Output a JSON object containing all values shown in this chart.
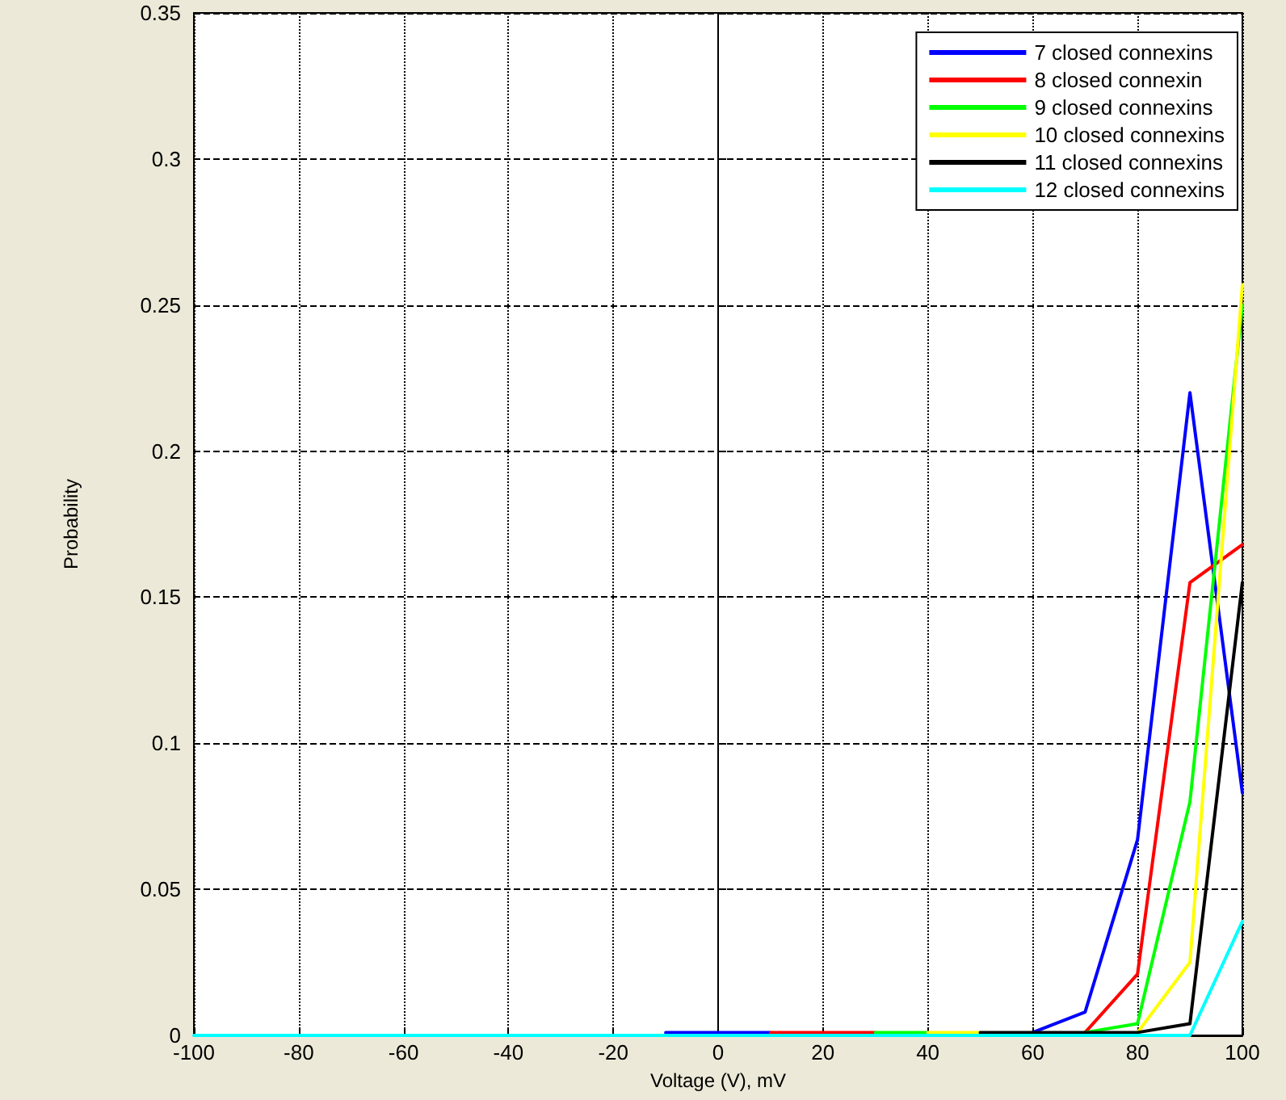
{
  "chart_data": {
    "type": "line",
    "xlabel": "Voltage (V), mV",
    "ylabel": "Probability",
    "x": [
      -100,
      -90,
      -80,
      -70,
      -60,
      -50,
      -40,
      -30,
      -20,
      -10,
      0,
      10,
      20,
      30,
      40,
      50,
      60,
      70,
      80,
      90,
      100
    ],
    "series": [
      {
        "name": "7 closed connexins",
        "color": "#0000ff",
        "values": [
          null,
          null,
          null,
          null,
          null,
          null,
          null,
          null,
          null,
          0.001,
          0.001,
          0.001,
          null,
          null,
          null,
          null,
          0.001,
          0.008,
          0.067,
          0.22,
          0.083
        ]
      },
      {
        "name": "8 closed connexin",
        "color": "#ff0000",
        "values": [
          null,
          null,
          null,
          null,
          null,
          null,
          null,
          null,
          null,
          null,
          null,
          0.001,
          0.001,
          0.001,
          null,
          null,
          null,
          0.001,
          0.021,
          0.155,
          0.168
        ]
      },
      {
        "name": "9 closed connexins",
        "color": "#00ff00",
        "values": [
          null,
          null,
          null,
          null,
          null,
          null,
          null,
          null,
          null,
          null,
          null,
          null,
          null,
          0.001,
          0.001,
          null,
          null,
          0.001,
          0.004,
          0.08,
          0.25
        ]
      },
      {
        "name": "10 closed connexins",
        "color": "#ffff00",
        "values": [
          null,
          null,
          null,
          null,
          null,
          null,
          null,
          null,
          null,
          null,
          null,
          null,
          null,
          null,
          0.001,
          0.001,
          null,
          null,
          0.001,
          0.025,
          0.257
        ]
      },
      {
        "name": "11 closed connexins",
        "color": "#000000",
        "values": [
          null,
          null,
          null,
          null,
          null,
          null,
          null,
          null,
          null,
          null,
          null,
          null,
          null,
          null,
          null,
          0.001,
          0.001,
          0.001,
          0.001,
          0.004,
          0.155
        ]
      },
      {
        "name": "12 closed connexins",
        "color": "#00ffff",
        "values": [
          0,
          0,
          0,
          0,
          0,
          0,
          0,
          0,
          0,
          0,
          0,
          0,
          0,
          0,
          0,
          0,
          0,
          0,
          0,
          0,
          0.039
        ]
      }
    ],
    "xlim": [
      -100,
      100
    ],
    "xticks": [
      -100,
      -80,
      -60,
      -40,
      -20,
      0,
      20,
      40,
      60,
      80,
      100
    ],
    "ylim": [
      0,
      0.35
    ],
    "yticks": [
      0,
      0.05,
      0.1,
      0.15,
      0.2,
      0.25,
      0.3,
      0.35
    ],
    "grid": true,
    "legend": "top right",
    "marker": "none",
    "line_style": "solid"
  }
}
